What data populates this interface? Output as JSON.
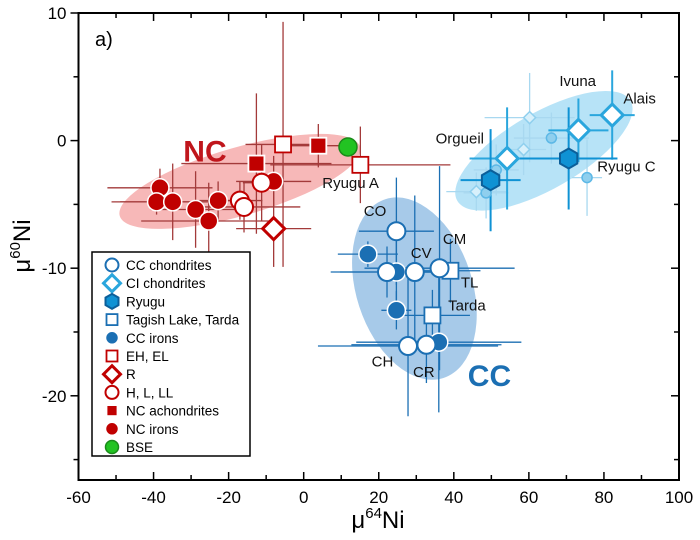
{
  "chart_data": {
    "type": "scatter",
    "panel_label": "a)",
    "xlabel": {
      "prefix": "μ",
      "sup": "64",
      "base": "Ni"
    },
    "ylabel": {
      "prefix": "μ",
      "sup": "60",
      "base": "Ni"
    },
    "xlim": [
      -60,
      100
    ],
    "ylim": [
      -26.6,
      10
    ],
    "xticks": [
      "-60",
      "-40",
      "-20",
      "0",
      "20",
      "40",
      "60",
      "80",
      "100"
    ],
    "yticks": [
      "-20",
      "-10",
      "0",
      "10"
    ],
    "grid": false,
    "legend_position": "bottom-left",
    "colors": {
      "nc": "#c00000",
      "nc_err": "#a33a3a",
      "cc": "#1b6fb3",
      "ci": "#2aa6dd",
      "ryugu": "#0f92d4",
      "faded": "#8fcfee",
      "bse": "#22c322",
      "nc_region": "#f4a0a0",
      "cc_region": "#8ab8e2",
      "ci_region": "#9fd9f4"
    },
    "regions": [
      {
        "label": "NC",
        "color": "#c0161c"
      },
      {
        "label": "CC",
        "color": "#1b6fb3"
      }
    ],
    "series": [
      {
        "name": "CC chondrites",
        "marker": "open-circle",
        "color": "#1b6fb3",
        "points": [
          [
            24.7,
            -7.1,
            10,
            4.2
          ],
          [
            22.2,
            -10.3,
            15,
            2
          ],
          [
            29.6,
            -10.3,
            8,
            6
          ],
          [
            36.2,
            -10.0,
            20,
            8
          ],
          [
            27.8,
            -16.1,
            24,
            5.5
          ],
          [
            32.7,
            -16.0,
            20,
            3
          ]
        ]
      },
      {
        "name": "CI chondrites",
        "marker": "open-diamond",
        "color": "#2aa6dd",
        "points": [
          [
            82.2,
            2.0,
            6,
            3.5
          ],
          [
            73.2,
            0.8,
            8,
            2.5
          ],
          [
            54.2,
            -1.4,
            10,
            4
          ]
        ]
      },
      {
        "name": "Ryugu",
        "marker": "hexagon",
        "color": "#0f92d4",
        "points": [
          [
            70.6,
            -1.4,
            13,
            4
          ],
          [
            49.8,
            -3.1,
            8,
            4
          ]
        ]
      },
      {
        "name": "Tagish Lake, Tarda",
        "marker": "open-square",
        "color": "#1b6fb3",
        "points": [
          [
            39.1,
            -10.2,
            8,
            2.5
          ],
          [
            34.3,
            -13.7,
            10,
            2
          ]
        ]
      },
      {
        "name": "CC irons",
        "marker": "filled-circle",
        "color": "#1b6fb3",
        "points": [
          [
            17.1,
            -8.9,
            8,
            1
          ],
          [
            24.7,
            -10.3,
            15,
            2.5
          ],
          [
            24.7,
            -13.3,
            4,
            1.5
          ],
          [
            36.0,
            -15.8,
            22,
            5.5
          ]
        ]
      },
      {
        "name": "EH, EL",
        "marker": "open-square",
        "color": "#c00000",
        "points": [
          [
            -5.5,
            -0.3,
            10,
            9.6
          ],
          [
            15.1,
            -1.9,
            24,
            3
          ]
        ]
      },
      {
        "name": "R",
        "marker": "open-diamond",
        "color": "#c00000",
        "points": [
          [
            -8.0,
            -6.9,
            10,
            3
          ]
        ]
      },
      {
        "name": "H, L, LL",
        "marker": "open-circle",
        "color": "#c00000",
        "points": [
          [
            -17.0,
            -4.7,
            6,
            1.5
          ],
          [
            -15.9,
            -5.2,
            15,
            2
          ],
          [
            -11.2,
            -3.3,
            5,
            3
          ]
        ]
      },
      {
        "name": "NC achondrites",
        "marker": "filled-square",
        "color": "#c00000",
        "points": [
          [
            -12.6,
            -1.8,
            20,
            5.5
          ],
          [
            3.9,
            -0.4,
            8,
            1.7
          ]
        ]
      },
      {
        "name": "NC irons",
        "marker": "filled-circle",
        "color": "#c00000",
        "points": [
          [
            -38.3,
            -3.7,
            14,
            1.5
          ],
          [
            -39.2,
            -4.8,
            12,
            1
          ],
          [
            -34.9,
            -4.8,
            14,
            3
          ],
          [
            -28.8,
            -5.4,
            12,
            3
          ],
          [
            -25.3,
            -6.3,
            18,
            3
          ],
          [
            -22.8,
            -4.7,
            5,
            1.5
          ],
          [
            -8.0,
            -3.2,
            10,
            2
          ]
        ]
      },
      {
        "name": "BSE",
        "marker": "filled-circle",
        "color": "#22c322",
        "points": [
          [
            11.8,
            -0.5,
            0,
            0
          ]
        ]
      },
      {
        "marker": "faded-diamond",
        "color": "#8fcfee",
        "points": [
          [
            60.2,
            1.8,
            12,
            3.5
          ],
          [
            58.6,
            -0.7,
            6,
            2
          ],
          [
            46.0,
            -4.0,
            8,
            1.5
          ]
        ]
      },
      {
        "marker": "faded-circle",
        "color": "#8fcfee",
        "points": [
          [
            66.0,
            0.2,
            10,
            2
          ],
          [
            75.5,
            -2.9,
            4,
            3
          ],
          [
            51.3,
            -2.3,
            6,
            2
          ],
          [
            48.6,
            -4.1,
            6,
            2
          ]
        ]
      }
    ],
    "annotations": [
      {
        "text": "NC",
        "x": -26.3,
        "y": -1.0,
        "style": "region-nc"
      },
      {
        "text": "CC",
        "x": 49.5,
        "y": -18.6,
        "style": "region-cc"
      },
      {
        "text": "CO",
        "x": 19.0,
        "y": -5.6
      },
      {
        "text": "CV",
        "x": 31.3,
        "y": -8.9
      },
      {
        "text": "CM",
        "x": 40.2,
        "y": -7.8
      },
      {
        "text": "TL",
        "x": 44.2,
        "y": -11.2
      },
      {
        "text": "Tarda",
        "x": 43.5,
        "y": -13.0
      },
      {
        "text": "CH",
        "x": 21.0,
        "y": -17.4
      },
      {
        "text": "CR",
        "x": 32.0,
        "y": -18.2
      },
      {
        "text": "Ryugu A",
        "x": 12.5,
        "y": -3.4
      },
      {
        "text": "Orgueil",
        "x": 41.6,
        "y": 0.1
      },
      {
        "text": "Ivuna",
        "x": 73.0,
        "y": 4.6
      },
      {
        "text": "Alais",
        "x": 89.5,
        "y": 3.2
      },
      {
        "text": "Ryugu C",
        "x": 86.0,
        "y": -2.1
      }
    ]
  }
}
